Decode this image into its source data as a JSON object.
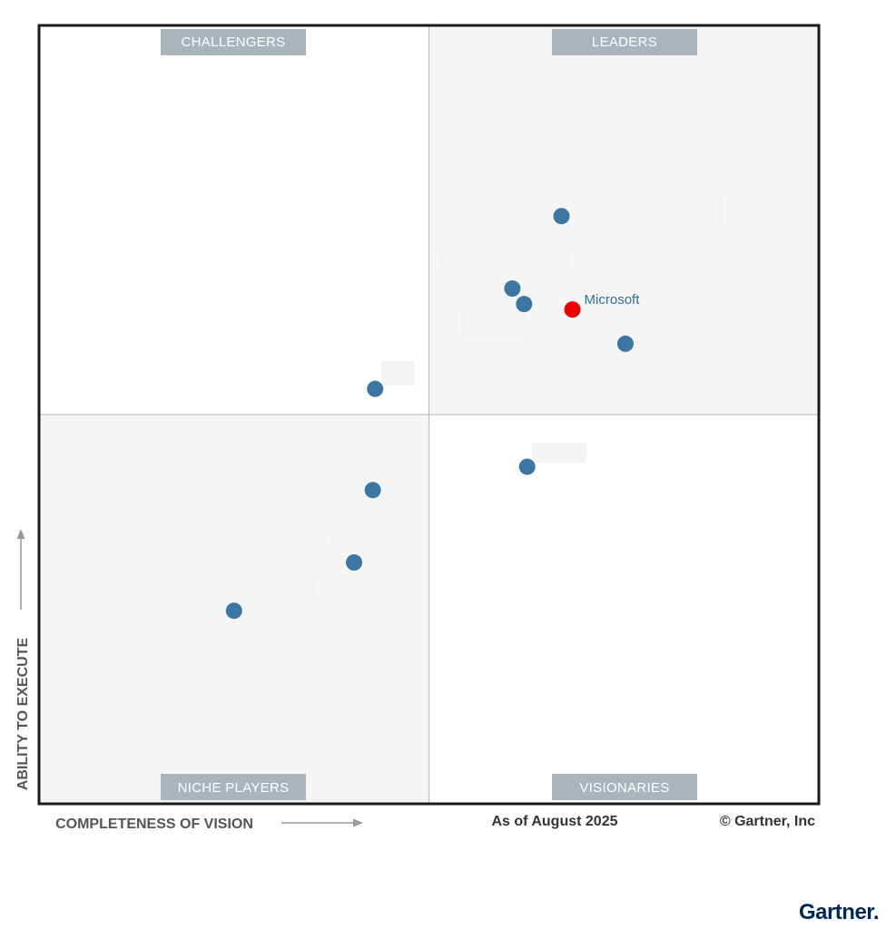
{
  "chart_data": {
    "type": "scatter",
    "x_label": "COMPLETENESS OF VISION",
    "y_label": "ABILITY TO EXECUTE",
    "xlim": [
      0,
      100
    ],
    "ylim": [
      0,
      100
    ],
    "quadrants": {
      "top_left": "CHALLENGERS",
      "top_right": "LEADERS",
      "bottom_left": "NICHE PLAYERS",
      "bottom_right": "VISIONARIES"
    },
    "points": [
      {
        "label": "",
        "x": 67.0,
        "y": 75.5,
        "color": "#3b77a2"
      },
      {
        "label": "",
        "x": 60.7,
        "y": 66.2,
        "color": "#3b77a2"
      },
      {
        "label": "",
        "x": 62.2,
        "y": 64.2,
        "color": "#3b77a2"
      },
      {
        "label": "Microsoft",
        "x": 68.4,
        "y": 63.5,
        "color": "#ee0000"
      },
      {
        "label": "",
        "x": 75.2,
        "y": 59.1,
        "color": "#3b77a2"
      },
      {
        "label": "",
        "x": 43.1,
        "y": 53.3,
        "color": "#3b77a2"
      },
      {
        "label": "",
        "x": 62.6,
        "y": 43.3,
        "color": "#3b77a2"
      },
      {
        "label": "",
        "x": 42.8,
        "y": 40.3,
        "color": "#3b77a2"
      },
      {
        "label": "",
        "x": 40.4,
        "y": 31.0,
        "color": "#3b77a2"
      },
      {
        "label": "",
        "x": 25.0,
        "y": 24.8,
        "color": "#3b77a2"
      }
    ],
    "grid": false,
    "legend": "none"
  },
  "footer": {
    "as_of": "As of August 2025",
    "copyright": "© Gartner, Inc"
  },
  "brand": {
    "name": "Gartner."
  },
  "colors": {
    "frame": "#1a1a1a",
    "shaded_quadrant": "#f5f5f5",
    "divider": "#c0c0c0",
    "label_bg": "#aab4bd",
    "axis_title": "#555555",
    "arrow": "#999999",
    "point_default": "#3b77a2",
    "point_highlight": "#ee0000",
    "point_label": "#2e6e9e",
    "brand": "#002856"
  }
}
